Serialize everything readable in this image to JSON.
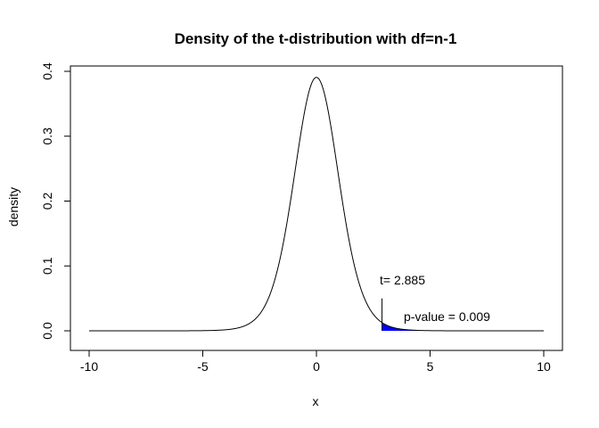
{
  "chart_data": {
    "type": "line",
    "title": "Density of the t-distribution with df=n-1",
    "xlabel": "x",
    "ylabel": "density",
    "xlim": [
      -10,
      10
    ],
    "ylim": [
      0,
      0.4
    ],
    "x_ticks": [
      -10,
      -5,
      0,
      5,
      10
    ],
    "x_tick_labels": [
      "-10",
      "-5",
      "0",
      "5",
      "10"
    ],
    "y_ticks": [
      0,
      0.1,
      0.2,
      0.3,
      0.4
    ],
    "y_tick_labels": [
      "0.0",
      "0.1",
      "0.2",
      "0.3",
      "0.4"
    ],
    "grid": false,
    "series": [
      {
        "curve_color": "#000000",
        "x": [
          -10,
          -9,
          -8,
          -7,
          -6,
          -5,
          -4.5,
          -4,
          -3.5,
          -3,
          -2.5,
          -2,
          -1.5,
          -1,
          -0.5,
          0,
          0.5,
          1,
          1.5,
          2,
          2.5,
          2.885,
          3,
          3.5,
          4,
          4.5,
          5,
          6,
          7,
          8,
          9,
          10
        ],
        "y": [
          0.0,
          1e-05,
          2e-05,
          5e-05,
          0.00015,
          0.00058,
          0.00124,
          0.0028,
          0.0065,
          0.01518,
          0.0338,
          0.06804,
          0.11958,
          0.1812,
          0.332,
          0.389,
          0.332,
          0.1812,
          0.11958,
          0.06804,
          0.0338,
          0.01,
          0.01518,
          0.0065,
          0.0028,
          0.00124,
          0.00058,
          0.00015,
          5e-05,
          2e-05,
          1e-05,
          0.0
        ]
      }
    ],
    "t_statistic": 2.885,
    "t_marker_height": 0.05,
    "shaded_tail_from": 2.885,
    "shaded_tail_color": "#0000ff",
    "annotations": {
      "t_label": "t= 2.885",
      "p_label": "p-value = 0.009"
    }
  }
}
